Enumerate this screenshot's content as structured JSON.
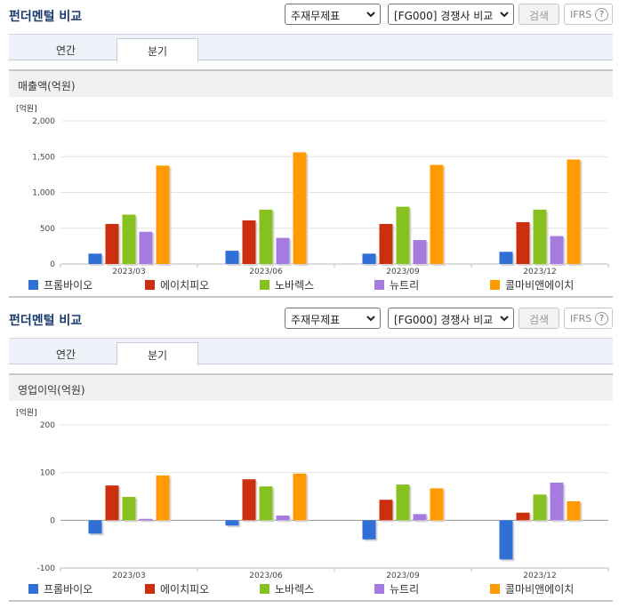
{
  "sections": [
    {
      "title": "펀더멘털 비교",
      "select_statement": "주재무제표",
      "select_compare": "[FG000] 경쟁사 비교",
      "search_label": "검색",
      "ifrs_label": "IFRS",
      "help_label": "?",
      "tabs": [
        {
          "label": "연간"
        },
        {
          "label": "분기"
        }
      ],
      "active_tab": "분기",
      "panel_title": "매출액(억원)",
      "chart_data": {
        "type": "bar",
        "title": "매출액(억원)",
        "unit_label": "[억원]",
        "categories": [
          "2023/03",
          "2023/06",
          "2023/09",
          "2023/12"
        ],
        "ylim": [
          0,
          2000
        ],
        "yticks": [
          0,
          500,
          1000,
          1500,
          2000
        ],
        "ytick_labels": [
          "0",
          "500",
          "1,000",
          "1,500",
          "2,000"
        ],
        "grid": true,
        "legend_position": "bottom",
        "series": [
          {
            "name": "프롬바이오",
            "color": "#2f6fd6",
            "values": [
              145,
              185,
              145,
              170
            ]
          },
          {
            "name": "에이치피오",
            "color": "#cc2f0e",
            "values": [
              560,
              610,
              560,
              585
            ]
          },
          {
            "name": "노바렉스",
            "color": "#86c11f",
            "values": [
              690,
              760,
              800,
              760
            ]
          },
          {
            "name": "뉴트리",
            "color": "#a57be0",
            "values": [
              450,
              365,
              335,
              390
            ]
          },
          {
            "name": "콜마비앤에이치",
            "color": "#ff9a00",
            "values": [
              1375,
              1560,
              1385,
              1460
            ]
          }
        ]
      }
    },
    {
      "title": "펀더멘털 비교",
      "select_statement": "주재무제표",
      "select_compare": "[FG000] 경쟁사 비교",
      "search_label": "검색",
      "ifrs_label": "IFRS",
      "help_label": "?",
      "tabs": [
        {
          "label": "연간"
        },
        {
          "label": "분기"
        }
      ],
      "active_tab": "분기",
      "panel_title": "영업이익(억원)",
      "chart_data": {
        "type": "bar",
        "title": "영업이익(억원)",
        "unit_label": "[억원]",
        "categories": [
          "2023/03",
          "2023/06",
          "2023/09",
          "2023/12"
        ],
        "ylim": [
          -100,
          200
        ],
        "yticks": [
          -100,
          0,
          100,
          200
        ],
        "ytick_labels": [
          "-100",
          "0",
          "100",
          "200"
        ],
        "grid": true,
        "legend_position": "bottom",
        "series": [
          {
            "name": "프롬바이오",
            "color": "#2f6fd6",
            "values": [
              -28,
              -11,
              -40,
              -82
            ]
          },
          {
            "name": "에이치피오",
            "color": "#cc2f0e",
            "values": [
              73,
              86,
              43,
              16
            ]
          },
          {
            "name": "노바렉스",
            "color": "#86c11f",
            "values": [
              49,
              71,
              75,
              54
            ]
          },
          {
            "name": "뉴트리",
            "color": "#a57be0",
            "values": [
              3,
              10,
              13,
              79
            ]
          },
          {
            "name": "콜마비앤에이치",
            "color": "#ff9a00",
            "values": [
              94,
              98,
              67,
              40
            ]
          }
        ]
      }
    }
  ]
}
